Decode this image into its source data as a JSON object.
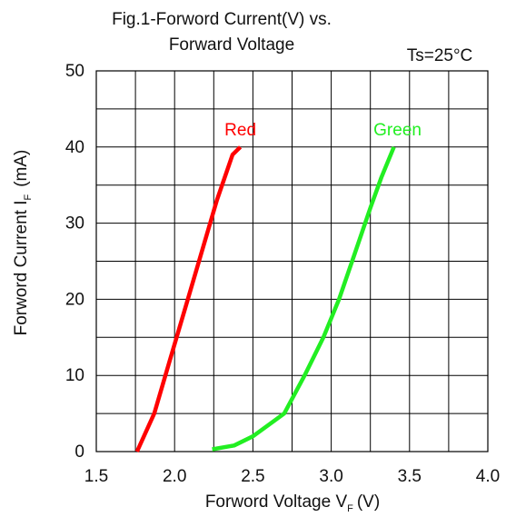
{
  "chart_data": {
    "type": "line",
    "title_line1": "Fig.1-Forword Current(V) vs.",
    "title_line2": "Forward Voltage",
    "annotation": "Ts=25°C",
    "xlabel_main": "Forword Voltage V",
    "xlabel_sub": "F",
    "xlabel_unit": "(V)",
    "ylabel_main": "Forword Current I",
    "ylabel_sub": "F",
    "ylabel_unit": "(mA)",
    "xlim": [
      1.5,
      4.0
    ],
    "ylim": [
      0,
      50
    ],
    "x_tick_labels": [
      "1.5",
      "2.0",
      "2.5",
      "3.0",
      "3.5",
      "4.0"
    ],
    "y_tick_labels": [
      "0",
      "10",
      "20",
      "30",
      "40",
      "50"
    ],
    "grid": true,
    "series": [
      {
        "name": "Red",
        "color": "#ff0000",
        "x": [
          1.76,
          1.87,
          1.97,
          2.07,
          2.17,
          2.27,
          2.37,
          2.42
        ],
        "y": [
          0,
          5,
          12,
          19,
          26,
          33,
          39,
          40
        ]
      },
      {
        "name": "Green",
        "color": "#22ee22",
        "x": [
          2.24,
          2.38,
          2.5,
          2.6,
          2.7,
          2.83,
          2.95,
          3.05,
          3.15,
          3.25,
          3.32,
          3.4
        ],
        "y": [
          0.3,
          0.8,
          2,
          3.5,
          5,
          10,
          15,
          20,
          26,
          32,
          36,
          40
        ]
      }
    ]
  }
}
